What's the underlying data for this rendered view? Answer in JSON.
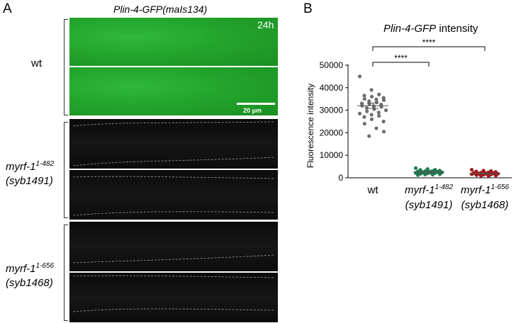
{
  "panel_a": {
    "letter": "A",
    "title": "Plin-4-GFP(maIs134)",
    "timepoint": "24h",
    "scalebar": "20 μm",
    "rows": [
      {
        "line1": "wt",
        "line1_sup": "",
        "line2": ""
      },
      {
        "line1": "myrf-1",
        "line1_sup": "1-482",
        "line2": "(syb1491)"
      },
      {
        "line1": "myrf-1",
        "line1_sup": "1-656",
        "line2": "(syb1468)"
      }
    ]
  },
  "panel_b": {
    "letter": "B",
    "title_italic": "Plin-4-GFP",
    "title_rest": " intensity",
    "significance": [
      "****",
      "****"
    ]
  },
  "chart_data": {
    "type": "scatter",
    "title": "Plin-4-GFP intensity",
    "ylabel": "Fluorescence intensity",
    "ylim": [
      0,
      50000
    ],
    "yticks": [
      "0",
      "10000",
      "20000",
      "30000",
      "40000",
      "50000"
    ],
    "categories": [
      {
        "name": "wt",
        "sup": "",
        "line2": ""
      },
      {
        "name": "myrf-1",
        "sup": "1-482",
        "line2": "(syb1491)"
      },
      {
        "name": "myrf-1",
        "sup": "1-656",
        "line2": "(syb1468)"
      }
    ],
    "series": [
      {
        "color": "#6e6e6e",
        "mean": 32000,
        "sem": 1200,
        "values": [
          45000,
          39000,
          37000,
          36500,
          36000,
          35500,
          35000,
          34800,
          34500,
          34000,
          33500,
          33000,
          32800,
          32500,
          32000,
          31800,
          31500,
          31000,
          30500,
          30000,
          29500,
          29000,
          28500,
          28000,
          27500,
          27000,
          26000,
          25000,
          24000,
          22000,
          20500,
          18500
        ]
      },
      {
        "color": "#1e7a4e",
        "mean": 2500,
        "sem": 150,
        "values": [
          4300,
          3900,
          3600,
          3500,
          3300,
          3200,
          3100,
          3000,
          2900,
          2900,
          2800,
          2800,
          2700,
          2700,
          2600,
          2600,
          2500,
          2500,
          2400,
          2400,
          2300,
          2300,
          2200,
          2200,
          2100,
          2000,
          2000,
          1900,
          1800,
          1700,
          1600,
          1500,
          1400,
          1200
        ]
      },
      {
        "color": "#a01c1c",
        "mean": 1900,
        "sem": 120,
        "values": [
          3600,
          3200,
          3000,
          2800,
          2700,
          2600,
          2500,
          2400,
          2300,
          2300,
          2200,
          2200,
          2100,
          2100,
          2000,
          2000,
          1900,
          1900,
          1800,
          1800,
          1700,
          1700,
          1600,
          1600,
          1500,
          1400,
          1400,
          1300,
          1200,
          1100,
          1000,
          900,
          800
        ]
      }
    ],
    "comparisons": [
      {
        "from": 0,
        "to": 1,
        "label": "****"
      },
      {
        "from": 0,
        "to": 2,
        "label": "****"
      }
    ]
  }
}
